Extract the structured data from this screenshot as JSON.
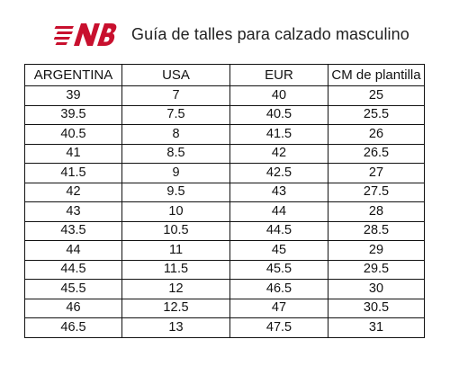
{
  "header": {
    "title": "Guía de talles para calzado masculino",
    "logo_name": "new-balance-logo",
    "logo_color": "#c8102e"
  },
  "table": {
    "columns": [
      "ARGENTINA",
      "USA",
      "EUR",
      "CM de plantilla"
    ],
    "rows": [
      [
        "39",
        "7",
        "40",
        "25"
      ],
      [
        "39.5",
        "7.5",
        "40.5",
        "25.5"
      ],
      [
        "40.5",
        "8",
        "41.5",
        "26"
      ],
      [
        "41",
        "8.5",
        "42",
        "26.5"
      ],
      [
        "41.5",
        "9",
        "42.5",
        "27"
      ],
      [
        "42",
        "9.5",
        "43",
        "27.5"
      ],
      [
        "43",
        "10",
        "44",
        "28"
      ],
      [
        "43.5",
        "10.5",
        "44.5",
        "28.5"
      ],
      [
        "44",
        "11",
        "45",
        "29"
      ],
      [
        "44.5",
        "11.5",
        "45.5",
        "29.5"
      ],
      [
        "45.5",
        "12",
        "46.5",
        "30"
      ],
      [
        "46",
        "12.5",
        "47",
        "30.5"
      ],
      [
        "46.5",
        "13",
        "47.5",
        "31"
      ]
    ]
  }
}
